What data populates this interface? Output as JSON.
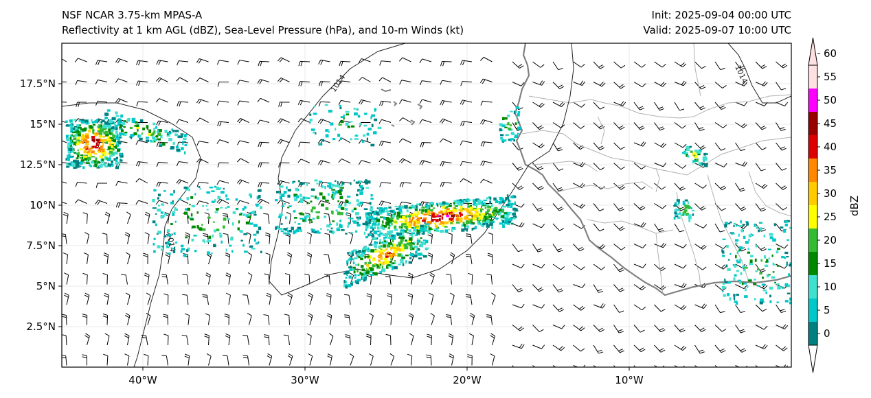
{
  "header": {
    "model": "NSF NCAR 3.75-km MPAS-A",
    "fields": "Reflectivity at 1 km AGL (dBZ), Sea-Level Pressure (hPa), and 10-m Winds (kt)",
    "init": "Init: 2025-09-04 00:00 UTC",
    "valid": "Valid: 2025-09-07 10:00 UTC"
  },
  "map": {
    "lat_labels": [
      "17.5°N",
      "15°N",
      "12.5°N",
      "10°N",
      "7.5°N",
      "5°N",
      "2.5°N"
    ],
    "lon_labels": [
      "40°W",
      "30°W",
      "20°W",
      "10°W"
    ],
    "lat_values": [
      17.5,
      15,
      12.5,
      10,
      7.5,
      5,
      2.5
    ],
    "lon_values": [
      -40,
      -30,
      -20,
      -10
    ],
    "lon_range": [
      -45,
      0
    ],
    "lat_range": [
      0,
      20
    ],
    "contour_label": "1014",
    "pressure_contour_hpa": 1014
  },
  "colorbar": {
    "label": "dBZ",
    "tick_labels": [
      "0",
      "5",
      "10",
      "15",
      "20",
      "25",
      "30",
      "35",
      "40",
      "45",
      "50",
      "55",
      "60"
    ],
    "colors": [
      "#008080",
      "#00c8c8",
      "#40e0d0",
      "#008800",
      "#33bb33",
      "#ffff00",
      "#ffcc00",
      "#ff8800",
      "#dd0000",
      "#990000",
      "#ff00ff",
      "#ffe0e0"
    ]
  }
}
